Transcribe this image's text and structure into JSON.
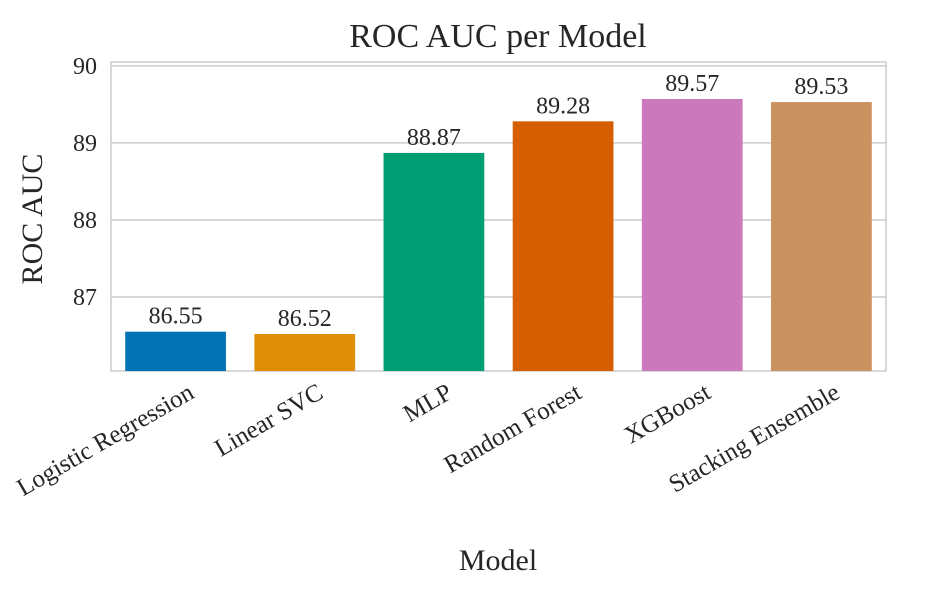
{
  "chart_data": {
    "type": "bar",
    "title": "ROC AUC per Model",
    "xlabel": "Model",
    "ylabel": "ROC AUC",
    "categories": [
      "Logistic Regression",
      "Linear SVC",
      "MLP",
      "Random Forest",
      "XGBoost",
      "Stacking Ensemble"
    ],
    "values": [
      86.55,
      86.52,
      88.87,
      89.28,
      89.57,
      89.53
    ],
    "value_labels": [
      "86.55",
      "86.52",
      "88.87",
      "89.28",
      "89.57",
      "89.53"
    ],
    "yticks": [
      "87",
      "88",
      "89",
      "90"
    ],
    "ylim": [
      86.04,
      90.05
    ],
    "grid": true,
    "colors": [
      "#0173b2",
      "#de8f05",
      "#029e73",
      "#d55e00",
      "#cc78bc",
      "#ca9161"
    ]
  }
}
